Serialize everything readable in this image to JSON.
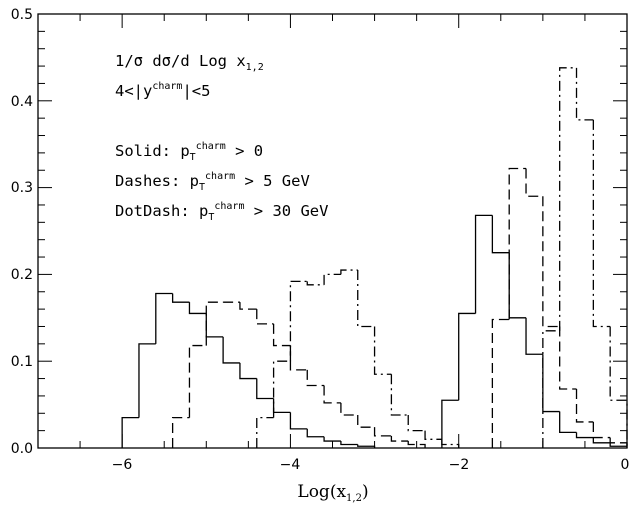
{
  "chart_data": {
    "type": "histogram",
    "xlabel": "Log(x",
    "xlabel_sub": "1,2",
    "xlabel_close": ")",
    "ylabel": "",
    "xlim": [
      -7,
      0
    ],
    "ylim": [
      0,
      0.5
    ],
    "x_ticks": [
      -6,
      -4,
      -2,
      0
    ],
    "x_tick_labels": [
      "−6",
      "−4",
      "−2",
      "0"
    ],
    "y_ticks": [
      0,
      0.1,
      0.2,
      0.3,
      0.4,
      0.5
    ],
    "y_tick_labels": [
      "0.0",
      "0.1",
      "0.2",
      "0.3",
      "0.4",
      "0.5"
    ],
    "bin_width": 0.2,
    "annotations": {
      "line1_a": "1/σ dσ/d Log x",
      "line1_sub": "1,2",
      "line2_a": "4<|y",
      "line2_sup": "charm",
      "line2_b": "|<5",
      "solid_a": "Solid: p",
      "solid_sub": "T",
      "solid_sup": "charm",
      "solid_b": " > 0",
      "dashes_a": "Dashes: p",
      "dashes_sub": "T",
      "dashes_sup": "charm",
      "dashes_b": " > 5 GeV",
      "dotdash_a": "DotDash: p",
      "dotdash_sub": "T",
      "dotdash_sup": "charm",
      "dotdash_b": " > 30 GeV"
    },
    "series": [
      {
        "style": "solid",
        "bins": [
          [
            -6.0,
            -5.8,
            0.035
          ],
          [
            -5.8,
            -5.6,
            0.12
          ],
          [
            -5.6,
            -5.4,
            0.178
          ],
          [
            -5.4,
            -5.2,
            0.168
          ],
          [
            -5.2,
            -5.0,
            0.155
          ],
          [
            -5.0,
            -4.8,
            0.128
          ],
          [
            -4.8,
            -4.6,
            0.098
          ],
          [
            -4.6,
            -4.4,
            0.08
          ],
          [
            -4.4,
            -4.2,
            0.057
          ],
          [
            -4.2,
            -4.0,
            0.041
          ],
          [
            -4.0,
            -3.8,
            0.022
          ],
          [
            -3.8,
            -3.6,
            0.013
          ],
          [
            -3.6,
            -3.4,
            0.008
          ],
          [
            -3.4,
            -3.2,
            0.004
          ],
          [
            -3.2,
            -3.0,
            0.002
          ],
          [
            -2.2,
            -2.0,
            0.055
          ],
          [
            -2.0,
            -1.8,
            0.155
          ],
          [
            -1.8,
            -1.6,
            0.268
          ],
          [
            -1.6,
            -1.4,
            0.225
          ],
          [
            -1.4,
            -1.2,
            0.15
          ],
          [
            -1.2,
            -1.0,
            0.108
          ],
          [
            -1.0,
            -0.8,
            0.042
          ],
          [
            -0.8,
            -0.6,
            0.018
          ],
          [
            -0.6,
            -0.4,
            0.012
          ],
          [
            -0.4,
            -0.2,
            0.006
          ],
          [
            -0.2,
            0.0,
            0.002
          ]
        ]
      },
      {
        "style": "dashed",
        "bins": [
          [
            -5.4,
            -5.2,
            0.035
          ],
          [
            -5.2,
            -5.0,
            0.118
          ],
          [
            -5.0,
            -4.8,
            0.168
          ],
          [
            -4.8,
            -4.6,
            0.168
          ],
          [
            -4.6,
            -4.4,
            0.16
          ],
          [
            -4.4,
            -4.2,
            0.143
          ],
          [
            -4.2,
            -4.0,
            0.118
          ],
          [
            -4.0,
            -3.8,
            0.09
          ],
          [
            -3.8,
            -3.6,
            0.072
          ],
          [
            -3.6,
            -3.4,
            0.052
          ],
          [
            -3.4,
            -3.2,
            0.038
          ],
          [
            -3.2,
            -3.0,
            0.024
          ],
          [
            -3.0,
            -2.8,
            0.014
          ],
          [
            -2.8,
            -2.6,
            0.008
          ],
          [
            -2.6,
            -2.4,
            0.004
          ],
          [
            -1.6,
            -1.4,
            0.148
          ],
          [
            -1.4,
            -1.2,
            0.322
          ],
          [
            -1.2,
            -1.0,
            0.29
          ],
          [
            -1.0,
            -0.8,
            0.14
          ],
          [
            -0.8,
            -0.6,
            0.068
          ],
          [
            -0.6,
            -0.4,
            0.03
          ],
          [
            -0.4,
            -0.2,
            0.012
          ],
          [
            -0.2,
            0.0,
            0.006
          ]
        ]
      },
      {
        "style": "dotdash",
        "bins": [
          [
            -4.4,
            -4.2,
            0.035
          ],
          [
            -4.2,
            -4.0,
            0.1
          ],
          [
            -4.0,
            -3.8,
            0.192
          ],
          [
            -3.8,
            -3.6,
            0.188
          ],
          [
            -3.6,
            -3.4,
            0.2
          ],
          [
            -3.4,
            -3.2,
            0.205
          ],
          [
            -3.2,
            -3.0,
            0.14
          ],
          [
            -3.0,
            -2.8,
            0.085
          ],
          [
            -2.8,
            -2.6,
            0.038
          ],
          [
            -2.6,
            -2.4,
            0.02
          ],
          [
            -2.4,
            -2.2,
            0.01
          ],
          [
            -2.2,
            -2.0,
            0.004
          ],
          [
            -1.0,
            -0.8,
            0.135
          ],
          [
            -0.8,
            -0.6,
            0.438
          ],
          [
            -0.6,
            -0.4,
            0.378
          ],
          [
            -0.4,
            -0.2,
            0.14
          ],
          [
            -0.2,
            0.0,
            0.055
          ]
        ]
      }
    ]
  }
}
